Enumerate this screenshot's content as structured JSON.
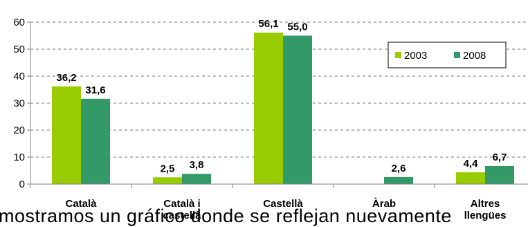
{
  "caption_text": "mostramos un gráfico donde se reflejan nuevamente",
  "chart_data": {
    "type": "bar",
    "categories": [
      "Català",
      "Català i castellà",
      "Castellà",
      "Àrab",
      "Altres llengües"
    ],
    "category_lines": [
      [
        "Català"
      ],
      [
        "Català i",
        "castellà"
      ],
      [
        "Castellà"
      ],
      [
        "Àrab"
      ],
      [
        "Altres",
        "llengües"
      ]
    ],
    "series": [
      {
        "name": "2003",
        "color": "#99cc00",
        "values": [
          36.2,
          2.5,
          56.1,
          null,
          4.4
        ],
        "labels": [
          "36,2",
          "2,5",
          "56,1",
          "",
          "4,4"
        ]
      },
      {
        "name": "2008",
        "color": "#339966",
        "values": [
          31.6,
          3.8,
          55.0,
          2.6,
          6.7
        ],
        "labels": [
          "31,6",
          "3,8",
          "55,0",
          "2,6",
          "6,7"
        ]
      }
    ],
    "ylim": [
      0,
      60
    ],
    "yticks": [
      0,
      10,
      20,
      30,
      40,
      50,
      60
    ],
    "grid": true,
    "legend_position": "top-right",
    "title": "",
    "xlabel": "",
    "ylabel": ""
  }
}
